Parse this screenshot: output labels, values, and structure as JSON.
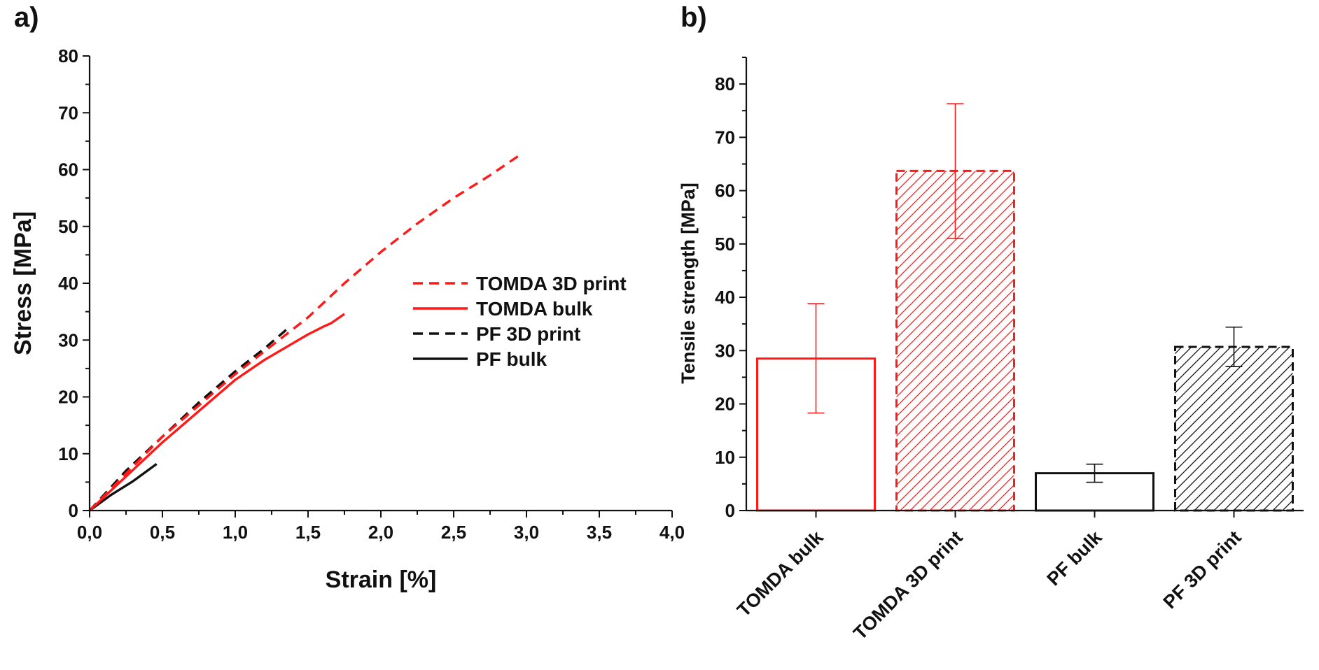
{
  "panels": {
    "a_label": "a)",
    "b_label": "b)"
  },
  "colors": {
    "red": "#ff1a1a",
    "black": "#111111"
  },
  "chart_data": [
    {
      "type": "line",
      "xlabel": "Strain [%]",
      "ylabel": "Stress [MPa]",
      "xlim": [
        0,
        4.0
      ],
      "ylim": [
        0,
        80
      ],
      "xticks": [
        "0,0",
        "0,5",
        "1,0",
        "1,5",
        "2,0",
        "2,5",
        "3,0",
        "3,5",
        "4,0"
      ],
      "yticks": [
        "0",
        "10",
        "20",
        "30",
        "40",
        "50",
        "60",
        "70",
        "80"
      ],
      "legend_position": "center-right",
      "series": [
        {
          "name": "TOMDA 3D print",
          "color": "#ff1a1a",
          "dash": "dashed",
          "points": [
            [
              0,
              0
            ],
            [
              0.25,
              6.5
            ],
            [
              0.5,
              13
            ],
            [
              0.75,
              18.5
            ],
            [
              1.0,
              24
            ],
            [
              1.25,
              29
            ],
            [
              1.5,
              34
            ],
            [
              1.75,
              40
            ],
            [
              2.0,
              45.5
            ],
            [
              2.25,
              50.5
            ],
            [
              2.5,
              55
            ],
            [
              2.75,
              59
            ],
            [
              2.95,
              62.5
            ]
          ]
        },
        {
          "name": "TOMDA bulk",
          "color": "#ff1a1a",
          "dash": "solid",
          "points": [
            [
              0,
              0
            ],
            [
              0.25,
              6
            ],
            [
              0.5,
              12
            ],
            [
              0.75,
              17.5
            ],
            [
              1.0,
              23
            ],
            [
              1.2,
              26.5
            ],
            [
              1.4,
              29.5
            ],
            [
              1.5,
              31
            ],
            [
              1.6,
              32.3
            ],
            [
              1.66,
              33
            ],
            [
              1.75,
              34.6
            ]
          ]
        },
        {
          "name": "PF 3D print",
          "color": "#111111",
          "dash": "dashed",
          "points": [
            [
              0,
              0
            ],
            [
              0.25,
              7
            ],
            [
              0.5,
              13
            ],
            [
              0.75,
              19
            ],
            [
              1.0,
              24.5
            ],
            [
              1.2,
              28.5
            ],
            [
              1.35,
              31.8
            ]
          ]
        },
        {
          "name": "PF bulk",
          "color": "#111111",
          "dash": "solid",
          "points": [
            [
              0,
              0
            ],
            [
              0.15,
              2.8
            ],
            [
              0.3,
              5.2
            ],
            [
              0.46,
              8.2
            ]
          ]
        }
      ]
    },
    {
      "type": "bar",
      "ylabel": "Tensile strength [MPa]",
      "ylim": [
        0,
        85
      ],
      "yticks": [
        "0",
        "10",
        "20",
        "30",
        "40",
        "50",
        "60",
        "70",
        "80"
      ],
      "categories": [
        "TOMDA bulk",
        "TOMDA 3D print",
        "PF bulk",
        "PF 3D print"
      ],
      "values": [
        28.5,
        63.7,
        7.0,
        30.7
      ],
      "error_low": [
        18.3,
        51.0,
        5.3,
        27.0
      ],
      "error_high": [
        38.8,
        76.3,
        8.7,
        34.4
      ],
      "bar_colors": [
        "#ff1a1a",
        "#ff1a1a",
        "#111111",
        "#111111"
      ],
      "bar_styles": [
        "solid",
        "dashed-hatched",
        "solid",
        "dashed-hatched"
      ]
    }
  ]
}
